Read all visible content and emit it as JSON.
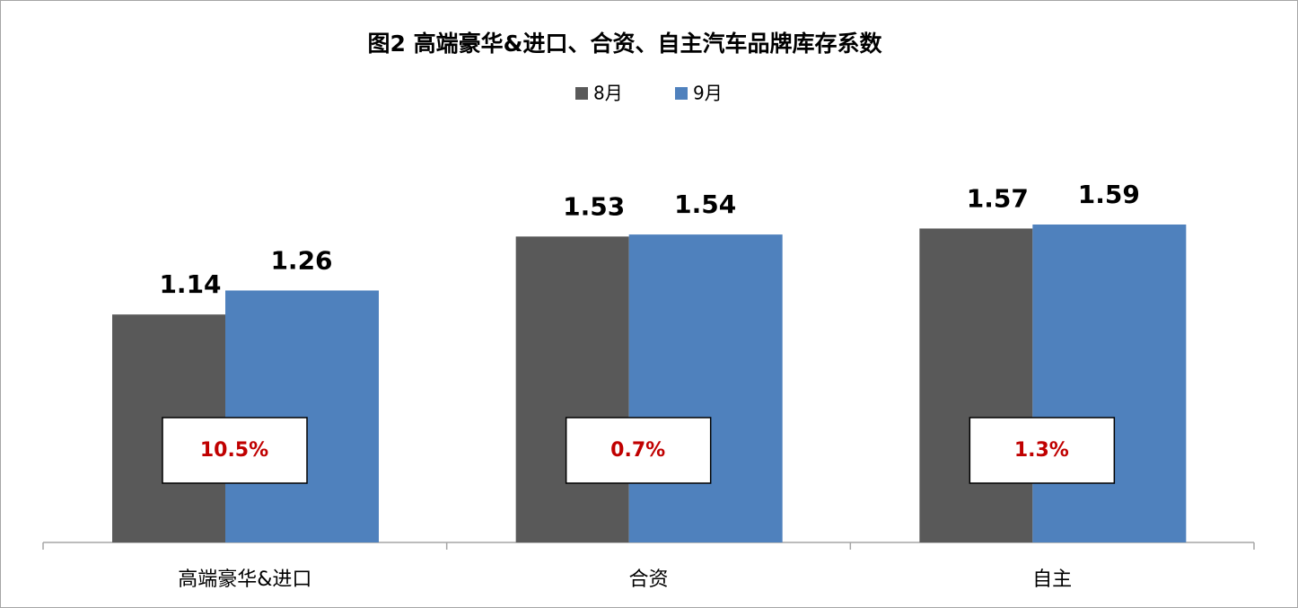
{
  "chart_data": {
    "type": "bar",
    "title": "图2 高端豪华&进口、合资、自主汽车品牌库存系数",
    "categories": [
      "高端豪华&进口",
      "合资",
      "自主"
    ],
    "series": [
      {
        "name": "8月",
        "color": "#595959",
        "values": [
          1.14,
          1.53,
          1.57
        ]
      },
      {
        "name": "9月",
        "color": "#4f81bd",
        "values": [
          1.26,
          1.54,
          1.59
        ]
      }
    ],
    "annotations": [
      "10.5%",
      "0.7%",
      "1.3%"
    ],
    "annotation_color": "#c00000",
    "legend": "top"
  }
}
